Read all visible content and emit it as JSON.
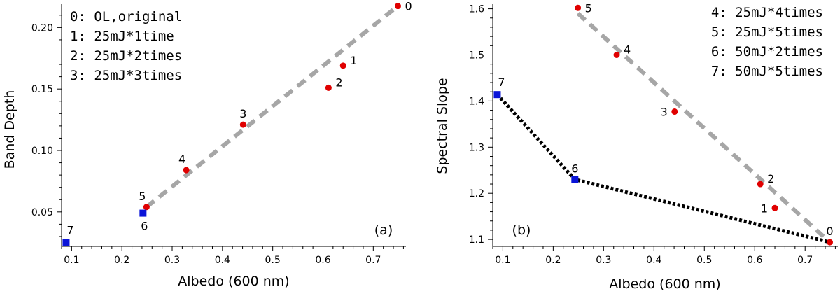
{
  "colors": {
    "trend_gray": "#a6a6a6",
    "trend_black": "#000000",
    "point_red": "#e00000",
    "point_blue": "#0a14d8",
    "axis": "#000000"
  },
  "chart_data": [
    {
      "type": "scatter",
      "panel_tag": "(a)",
      "title": "",
      "xlabel": "Albedo (600 nm)",
      "ylabel": "Band Depth",
      "xlim": [
        0.08,
        0.765
      ],
      "ylim": [
        0.022,
        0.219
      ],
      "xticks": [
        0.1,
        0.2,
        0.3,
        0.4,
        0.5,
        0.6,
        0.7
      ],
      "yticks": [
        0.05,
        0.1,
        0.15,
        0.2
      ],
      "xtick_labels": [
        "0.1",
        "0.2",
        "0.3",
        "0.4",
        "0.5",
        "0.6",
        "0.7"
      ],
      "ytick_labels": [
        "0.05",
        "0.10",
        "0.15",
        "0.20"
      ],
      "legend_position": "top-left",
      "legend": [
        "0: OL,original",
        "1: 25mJ*1time",
        "2: 25mJ*2times",
        "3: 25mJ*3times"
      ],
      "series": [
        {
          "name": "points",
          "points": [
            {
              "label": "0",
              "x": 0.749,
              "y": 0.2175,
              "color": "red",
              "marker": "circle",
              "label_side": "right"
            },
            {
              "label": "1",
              "x": 0.64,
              "y": 0.169,
              "color": "red",
              "marker": "circle",
              "label_side": "upper-right"
            },
            {
              "label": "2",
              "x": 0.611,
              "y": 0.151,
              "color": "red",
              "marker": "circle",
              "label_side": "upper-right"
            },
            {
              "label": "3",
              "x": 0.441,
              "y": 0.121,
              "color": "red",
              "marker": "circle",
              "label_side": "above"
            },
            {
              "label": "4",
              "x": 0.328,
              "y": 0.084,
              "color": "red",
              "marker": "circle",
              "label_side": "above-left"
            },
            {
              "label": "5",
              "x": 0.249,
              "y": 0.054,
              "color": "red",
              "marker": "circle",
              "label_side": "above-left"
            },
            {
              "label": "6",
              "x": 0.242,
              "y": 0.049,
              "color": "blue",
              "marker": "square",
              "label_side": "below"
            },
            {
              "label": "7",
              "x": 0.089,
              "y": 0.025,
              "color": "blue",
              "marker": "square",
              "label_side": "above-right"
            }
          ]
        }
      ],
      "trend_lines": [
        {
          "name": "laser-25mJ-trend",
          "style": "dashed",
          "color": "gray",
          "x": [
            0.249,
            0.749
          ],
          "y": [
            0.054,
            0.2175
          ]
        }
      ]
    },
    {
      "type": "scatter",
      "panel_tag": "(b)",
      "title": "",
      "xlabel": "Albedo (600 nm)",
      "ylabel": "Spectral Slope",
      "xlim": [
        0.08,
        0.765
      ],
      "ylim": [
        1.085,
        1.61
      ],
      "xticks": [
        0.1,
        0.2,
        0.3,
        0.4,
        0.5,
        0.6,
        0.7
      ],
      "yticks": [
        1.1,
        1.2,
        1.3,
        1.4,
        1.5,
        1.6
      ],
      "xtick_labels": [
        "0.1",
        "0.2",
        "0.3",
        "0.4",
        "0.5",
        "0.6",
        "0.7"
      ],
      "ytick_labels": [
        "1.1",
        "1.2",
        "1.3",
        "1.4",
        "1.5",
        "1.6"
      ],
      "legend_position": "top-right",
      "legend": [
        "4: 25mJ*4times",
        "5: 25mJ*5times",
        "6: 50mJ*2times",
        "7: 50mJ*5times"
      ],
      "series": [
        {
          "name": "points",
          "points": [
            {
              "label": "0",
              "x": 0.749,
              "y": 1.094,
              "color": "red",
              "marker": "circle",
              "label_side": "above"
            },
            {
              "label": "1",
              "x": 0.64,
              "y": 1.168,
              "color": "red",
              "marker": "circle",
              "label_side": "left"
            },
            {
              "label": "2",
              "x": 0.611,
              "y": 1.22,
              "color": "red",
              "marker": "circle",
              "label_side": "upper-right"
            },
            {
              "label": "3",
              "x": 0.441,
              "y": 1.377,
              "color": "red",
              "marker": "circle",
              "label_side": "left"
            },
            {
              "label": "4",
              "x": 0.326,
              "y": 1.5,
              "color": "red",
              "marker": "circle",
              "label_side": "upper-right"
            },
            {
              "label": "5",
              "x": 0.249,
              "y": 1.602,
              "color": "red",
              "marker": "circle",
              "label_side": "right"
            },
            {
              "label": "6",
              "x": 0.243,
              "y": 1.23,
              "color": "blue",
              "marker": "square",
              "label_side": "above"
            },
            {
              "label": "7",
              "x": 0.089,
              "y": 1.414,
              "color": "blue",
              "marker": "square",
              "label_side": "above-right"
            }
          ]
        }
      ],
      "trend_lines": [
        {
          "name": "laser-25mJ-trend",
          "style": "dashed",
          "color": "gray",
          "x": [
            0.249,
            0.749
          ],
          "y": [
            1.59,
            1.094
          ]
        },
        {
          "name": "laser-50mJ-trend",
          "style": "dotted",
          "color": "black",
          "x": [
            0.089,
            0.243,
            0.749
          ],
          "y": [
            1.414,
            1.23,
            1.094
          ]
        }
      ]
    }
  ]
}
